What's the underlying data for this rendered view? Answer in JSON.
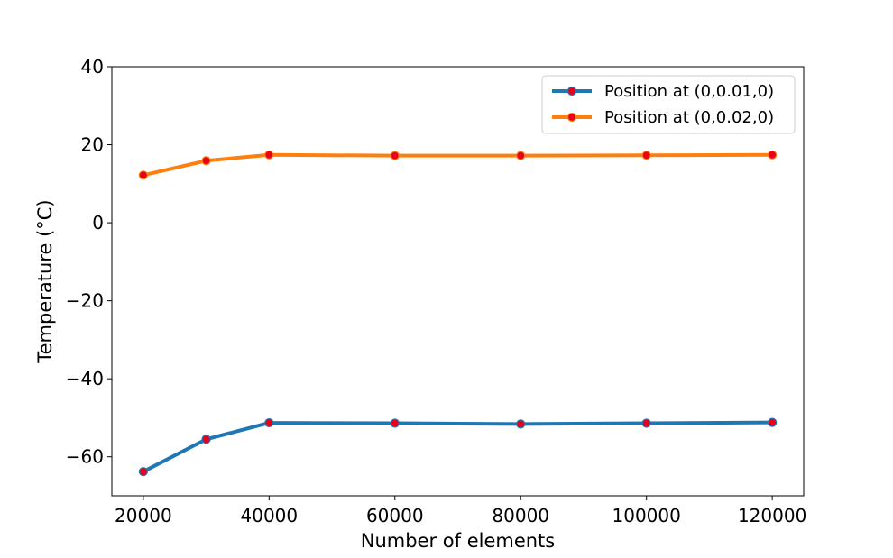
{
  "chart_data": {
    "type": "line",
    "title": "",
    "xlabel": "Number of elements",
    "ylabel": "Temperature (°C)",
    "xlim": [
      15000,
      125000
    ],
    "ylim": [
      -70,
      40
    ],
    "xticks": [
      20000,
      40000,
      60000,
      80000,
      100000,
      120000
    ],
    "xtick_labels": [
      "20000",
      "40000",
      "60000",
      "80000",
      "100000",
      "120000"
    ],
    "yticks": [
      -60,
      -40,
      -20,
      0,
      20,
      40
    ],
    "ytick_labels": [
      "−60",
      "−40",
      "−20",
      "0",
      "20",
      "40"
    ],
    "grid": false,
    "legend_position": "top-right",
    "x": [
      20000,
      30000,
      40000,
      60000,
      80000,
      100000,
      120000
    ],
    "series": [
      {
        "name": "Position at (0,0.01,0)",
        "color": "#1f77b4",
        "marker_color": "#e8001c",
        "values": [
          -63.8,
          -55.5,
          -51.3,
          -51.4,
          -51.6,
          -51.4,
          -51.2
        ]
      },
      {
        "name": "Position at (0,0.02,0)",
        "color": "#ff7f0e",
        "marker_color": "#e8001c",
        "values": [
          12.2,
          15.9,
          17.4,
          17.2,
          17.2,
          17.3,
          17.4
        ]
      }
    ]
  }
}
